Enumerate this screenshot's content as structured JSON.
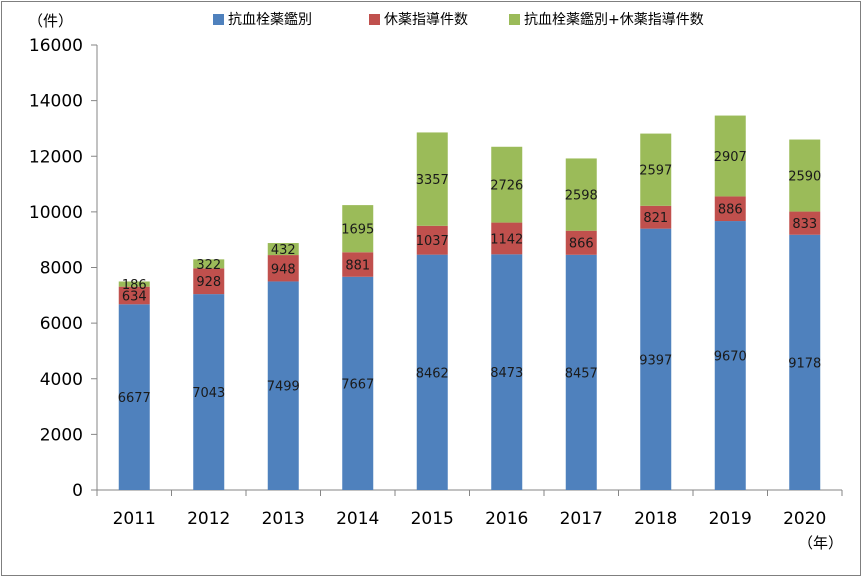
{
  "chart_data": {
    "type": "bar",
    "stacked": true,
    "ylabel_unit": "（件）",
    "xlabel_unit": "（年）",
    "ylim": [
      0,
      16000
    ],
    "yticks": [
      0,
      2000,
      4000,
      6000,
      8000,
      10000,
      12000,
      14000,
      16000
    ],
    "grid": false,
    "legend_position": "top",
    "categories": [
      "2011",
      "2012",
      "2013",
      "2014",
      "2015",
      "2016",
      "2017",
      "2018",
      "2019",
      "2020"
    ],
    "series": [
      {
        "name": "抗血栓薬鑑別",
        "color": "#4f81bd",
        "values": [
          6677,
          7043,
          7499,
          7667,
          8462,
          8473,
          8457,
          9397,
          9670,
          9178
        ]
      },
      {
        "name": "休薬指導件数",
        "color": "#c0504d",
        "values": [
          634,
          928,
          948,
          881,
          1037,
          1142,
          866,
          821,
          886,
          833
        ]
      },
      {
        "name": "抗血栓薬鑑別+休薬指導件数",
        "color": "#9bbb59",
        "values": [
          186,
          322,
          432,
          1695,
          3357,
          2726,
          2598,
          2597,
          2907,
          2590
        ]
      }
    ]
  }
}
